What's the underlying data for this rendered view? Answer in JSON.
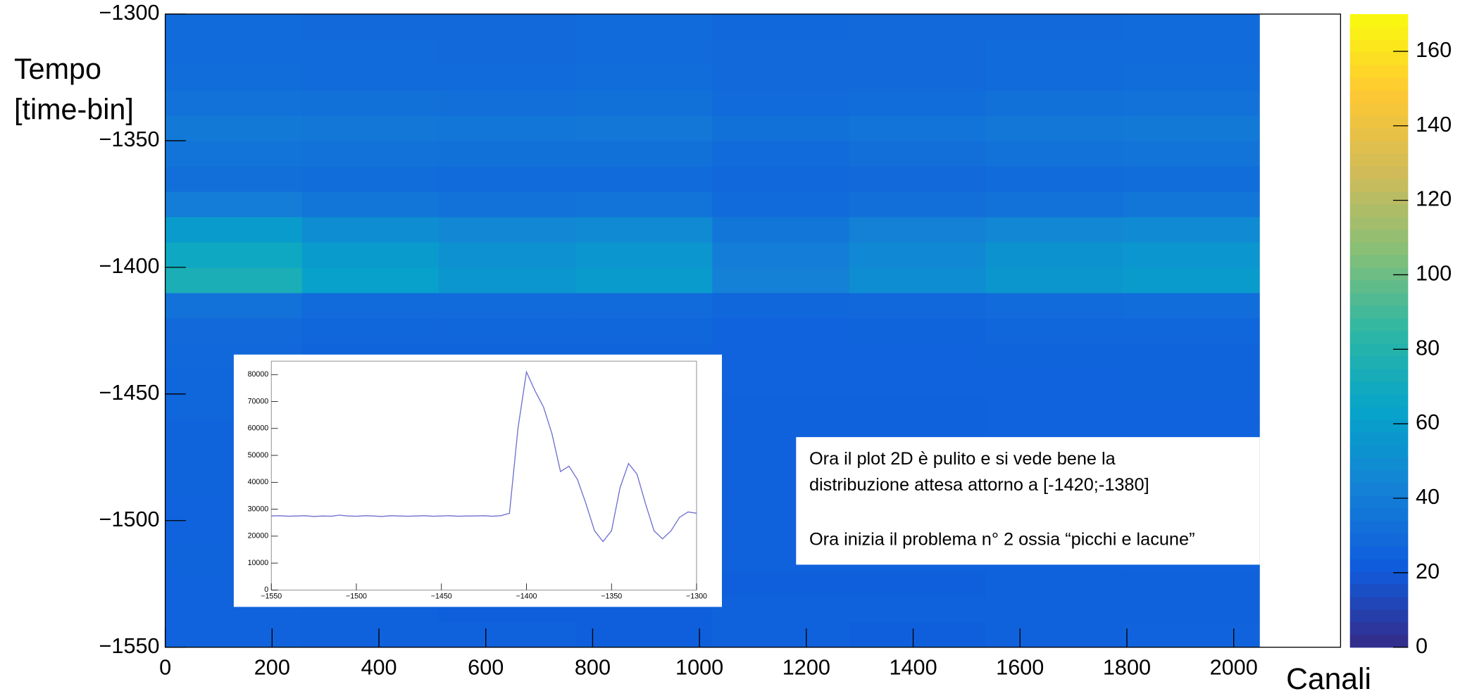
{
  "chart_data": [
    {
      "type": "heatmap",
      "xlabel": "Canali",
      "ylabel": [
        "Tempo",
        "[time-bin]"
      ],
      "xlim": [
        0,
        2200
      ],
      "ylim": [
        -1550,
        -1300
      ],
      "zlim": [
        0,
        170
      ],
      "xticks": [
        0,
        200,
        400,
        600,
        800,
        1000,
        1200,
        1400,
        1600,
        1800,
        2000
      ],
      "yticks": [
        {
          "value": -1550,
          "label": "−1550"
        },
        {
          "value": -1500,
          "label": "−1500"
        },
        {
          "value": -1450,
          "label": "−1450"
        },
        {
          "value": -1400,
          "label": "−1400"
        },
        {
          "value": -1350,
          "label": "−1350"
        },
        {
          "value": -1300,
          "label": "−1300"
        }
      ],
      "zticks": [
        0,
        20,
        40,
        60,
        80,
        100,
        120,
        140,
        160
      ],
      "colorscale": [
        "#352a87",
        "#0f5cdd",
        "#1481d6",
        "#06a4ca",
        "#2eb7a4",
        "#87bf77",
        "#d1bb59",
        "#fec832",
        "#f9fb0e"
      ],
      "xbins": [
        0,
        256,
        512,
        768,
        1024,
        1280,
        1536,
        1792,
        2048
      ],
      "ybins": [
        -1550,
        -1540,
        -1530,
        -1520,
        -1510,
        -1500,
        -1490,
        -1480,
        -1470,
        -1460,
        -1450,
        -1440,
        -1430,
        -1420,
        -1410,
        -1400,
        -1390,
        -1380,
        -1370,
        -1360,
        -1350,
        -1340,
        -1330,
        -1320,
        -1310,
        -1300
      ],
      "z": [
        [
          25,
          24,
          24,
          23,
          24,
          23,
          24,
          25
        ],
        [
          25,
          24,
          23,
          23,
          24,
          24,
          24,
          24
        ],
        [
          25,
          24,
          24,
          24,
          23,
          23,
          24,
          24
        ],
        [
          26,
          24,
          24,
          23,
          24,
          24,
          24,
          25
        ],
        [
          25,
          24,
          24,
          24,
          24,
          23,
          24,
          24
        ],
        [
          25,
          24,
          24,
          23,
          24,
          24,
          24,
          24
        ],
        [
          26,
          24,
          24,
          24,
          24,
          24,
          24,
          25
        ],
        [
          26,
          25,
          24,
          24,
          24,
          24,
          25,
          25
        ],
        [
          26,
          25,
          24,
          24,
          24,
          24,
          25,
          25
        ],
        [
          27,
          25,
          25,
          25,
          24,
          24,
          25,
          25
        ],
        [
          27,
          26,
          25,
          25,
          25,
          25,
          25,
          26
        ],
        [
          28,
          26,
          26,
          26,
          25,
          25,
          26,
          26
        ],
        [
          29,
          27,
          27,
          27,
          25,
          26,
          27,
          27
        ],
        [
          34,
          30,
          30,
          30,
          27,
          28,
          30,
          31
        ],
        [
          75,
          62,
          55,
          58,
          42,
          50,
          56,
          58
        ],
        [
          68,
          58,
          52,
          55,
          40,
          47,
          53,
          55
        ],
        [
          58,
          50,
          46,
          48,
          36,
          42,
          46,
          48
        ],
        [
          40,
          36,
          34,
          35,
          30,
          32,
          34,
          36
        ],
        [
          32,
          31,
          30,
          30,
          28,
          29,
          30,
          31
        ],
        [
          35,
          34,
          33,
          33,
          30,
          32,
          34,
          35
        ],
        [
          38,
          37,
          36,
          37,
          33,
          35,
          37,
          38
        ],
        [
          34,
          33,
          32,
          33,
          30,
          31,
          33,
          34
        ],
        [
          31,
          30,
          30,
          31,
          29,
          29,
          30,
          31
        ],
        [
          30,
          30,
          29,
          30,
          29,
          29,
          30,
          30
        ],
        [
          30,
          29,
          29,
          30,
          28,
          29,
          29,
          30
        ]
      ],
      "annotation": [
        "Ora il plot 2D è pulito e si vede bene la",
        "distribuzione attesa attorno a [-1420;-1380]",
        "Ora inizia il problema n° 2 ossia “picchi e lacune”"
      ]
    },
    {
      "type": "line",
      "color": "#6f6fd0",
      "xlim": [
        -1550,
        -1300
      ],
      "ylim": [
        0,
        85000
      ],
      "xticks": [
        {
          "value": -1550,
          "label": "−1550"
        },
        {
          "value": -1500,
          "label": "−1500"
        },
        {
          "value": -1450,
          "label": "−1450"
        },
        {
          "value": -1400,
          "label": "−1400"
        },
        {
          "value": -1350,
          "label": "−1350"
        },
        {
          "value": -1300,
          "label": "−1300"
        }
      ],
      "yticks": [
        0,
        10000,
        20000,
        30000,
        40000,
        50000,
        60000,
        70000,
        80000
      ],
      "x": [
        -1550,
        -1545,
        -1540,
        -1535,
        -1530,
        -1525,
        -1520,
        -1515,
        -1510,
        -1505,
        -1500,
        -1495,
        -1490,
        -1485,
        -1480,
        -1475,
        -1470,
        -1465,
        -1460,
        -1455,
        -1450,
        -1445,
        -1440,
        -1435,
        -1430,
        -1425,
        -1420,
        -1415,
        -1410,
        -1405,
        -1400,
        -1395,
        -1390,
        -1385,
        -1380,
        -1375,
        -1370,
        -1365,
        -1360,
        -1355,
        -1350,
        -1345,
        -1340,
        -1335,
        -1330,
        -1325,
        -1320,
        -1315,
        -1310,
        -1305,
        -1300
      ],
      "values": [
        27500,
        27600,
        27400,
        27500,
        27600,
        27300,
        27500,
        27400,
        27800,
        27500,
        27400,
        27600,
        27500,
        27300,
        27600,
        27500,
        27400,
        27500,
        27600,
        27400,
        27500,
        27600,
        27400,
        27500,
        27500,
        27600,
        27400,
        27600,
        28500,
        60000,
        81000,
        74000,
        68000,
        58000,
        44000,
        46000,
        41000,
        32000,
        22000,
        18000,
        22000,
        38000,
        47000,
        43000,
        32000,
        22000,
        19000,
        22000,
        27000,
        29000,
        28500
      ]
    }
  ]
}
